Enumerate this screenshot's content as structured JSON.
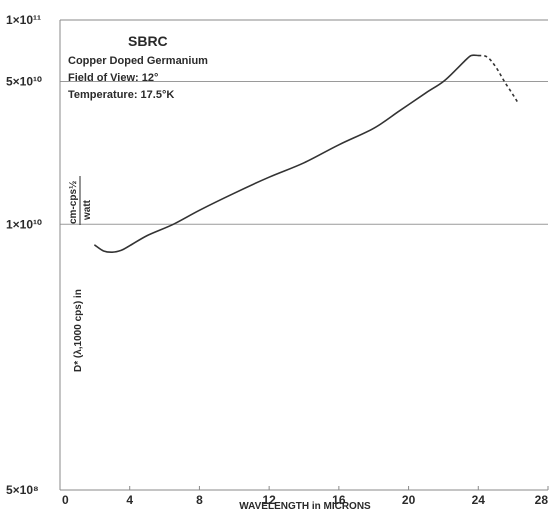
{
  "chart_data": {
    "type": "line",
    "title": "SBRC",
    "info_lines": [
      "Copper Doped Germanium",
      "Field of View: 12°",
      "Temperature: 17.5°K"
    ],
    "xlabel": "WAVELENGTH in MICRONS",
    "ylabel": "D* (λ,1000 cps) in",
    "ylabel_unit_num": "cm-cps½",
    "ylabel_unit_den": "watt",
    "xlim": [
      0,
      28
    ],
    "ylim": [
      500000000.0,
      100000000000.0
    ],
    "yscale": "log",
    "x_ticks": [
      {
        "v": 0,
        "label": "0"
      },
      {
        "v": 4,
        "label": "4"
      },
      {
        "v": 8,
        "label": "8"
      },
      {
        "v": 12,
        "label": "12"
      },
      {
        "v": 16,
        "label": "16"
      },
      {
        "v": 20,
        "label": "20"
      },
      {
        "v": 24,
        "label": "24"
      },
      {
        "v": 28,
        "label": "28"
      }
    ],
    "y_ticks": [
      {
        "v": 500000000.0,
        "label": "5×10⁸"
      },
      {
        "v": 10000000000.0,
        "label": "1×10¹⁰"
      },
      {
        "v": 50000000000.0,
        "label": "5×10¹⁰"
      },
      {
        "v": 100000000000.0,
        "label": "1×10¹¹"
      }
    ],
    "grid_y": [
      10000000000.0,
      50000000000.0
    ],
    "series": [
      {
        "style": "solid",
        "x": [
          2.0,
          2.5,
          3.0,
          3.5,
          4.0,
          5.0,
          6.5,
          8.0,
          10.0,
          12.0,
          14.0,
          16.0,
          18.0,
          19.5,
          21.0,
          22.0,
          22.8,
          23.3,
          23.6,
          24.0
        ],
        "y": [
          7900000000.0,
          7400000000.0,
          7300000000.0,
          7450000000.0,
          7850000000.0,
          8800000000.0,
          10000000000.0,
          11700000000.0,
          14200000000.0,
          17000000000.0,
          20000000000.0,
          24500000000.0,
          29500000000.0,
          36000000000.0,
          44000000000.0,
          50000000000.0,
          58000000000.0,
          64000000000.0,
          67000000000.0,
          67000000000.0
        ]
      },
      {
        "style": "dashed",
        "x": [
          24.0,
          24.5,
          25.0,
          25.5,
          26.0,
          26.3
        ],
        "y": [
          67000000000.0,
          66000000000.0,
          59000000000.0,
          50000000000.0,
          43000000000.0,
          39000000000.0
        ]
      }
    ]
  }
}
